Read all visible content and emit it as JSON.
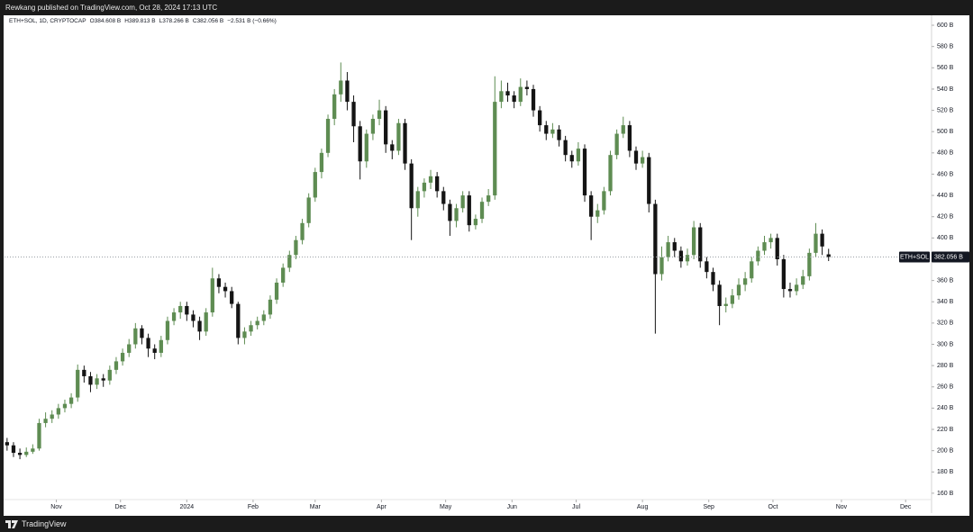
{
  "header": {
    "text": "Rewkang published on TradingView.com, Oct 28, 2024 17:13 UTC"
  },
  "footer": {
    "brand": "TradingView"
  },
  "chart_data": {
    "type": "candlestick",
    "legend": {
      "symbol": "ETH+SOL, 1D, CRYPTOCAP",
      "open": "O384.608 B",
      "high": "H389.813 B",
      "low": "L378.266 B",
      "close": "C382.056 B",
      "change": "−2.531 B (−0.66%)"
    },
    "up_color": "#5e8c52",
    "down_color": "#141414",
    "open": [
      208,
      205,
      198,
      196,
      199,
      202,
      226,
      230,
      234,
      240,
      244,
      250,
      276,
      270,
      262,
      268,
      266,
      276,
      284,
      292,
      300,
      315,
      306,
      296,
      292,
      304,
      322,
      330,
      336,
      328,
      322,
      312,
      330,
      362,
      354,
      350,
      338,
      306,
      312,
      318,
      322,
      328,
      342,
      358,
      372,
      384,
      398,
      414,
      438,
      462,
      480,
      512,
      535,
      548,
      528,
      505,
      472,
      498,
      512,
      520,
      488,
      482,
      508,
      470,
      428,
      444,
      452,
      458,
      444,
      432,
      416,
      428,
      440,
      412,
      418,
      434,
      440,
      528,
      538,
      534,
      528,
      542,
      540,
      520,
      506,
      498,
      502,
      492,
      478,
      472,
      484,
      440,
      420,
      426,
      444,
      478,
      498,
      506,
      482,
      470,
      476,
      432,
      366,
      382,
      396,
      388,
      378,
      384,
      410,
      378,
      368,
      356,
      336,
      338,
      346,
      356,
      362,
      378,
      388,
      396,
      400,
      380,
      352,
      350,
      356,
      364,
      386,
      404,
      384.608
    ],
    "high": [
      212,
      208,
      202,
      203,
      206,
      230,
      236,
      238,
      244,
      248,
      254,
      281,
      280,
      274,
      272,
      272,
      280,
      288,
      296,
      305,
      320,
      318,
      310,
      300,
      308,
      326,
      334,
      340,
      340,
      332,
      326,
      334,
      372,
      366,
      358,
      354,
      340,
      316,
      322,
      326,
      332,
      346,
      362,
      376,
      388,
      402,
      418,
      442,
      466,
      484,
      516,
      540,
      565,
      556,
      534,
      510,
      502,
      516,
      530,
      524,
      492,
      512,
      512,
      474,
      448,
      456,
      464,
      462,
      448,
      436,
      432,
      444,
      444,
      422,
      438,
      446,
      552,
      548,
      546,
      538,
      550,
      548,
      544,
      524,
      510,
      508,
      506,
      496,
      482,
      490,
      488,
      444,
      432,
      448,
      482,
      502,
      514,
      510,
      486,
      482,
      480,
      436,
      392,
      402,
      400,
      392,
      390,
      416,
      414,
      382,
      372,
      360,
      344,
      352,
      362,
      368,
      382,
      392,
      402,
      404,
      404,
      384,
      358,
      362,
      370,
      390,
      414,
      408,
      389.813
    ],
    "low": [
      200,
      194,
      192,
      194,
      197,
      200,
      222,
      226,
      230,
      236,
      240,
      246,
      264,
      255,
      258,
      260,
      262,
      272,
      280,
      288,
      296,
      300,
      288,
      286,
      288,
      300,
      318,
      324,
      322,
      316,
      304,
      308,
      326,
      348,
      344,
      334,
      300,
      300,
      308,
      314,
      318,
      324,
      338,
      354,
      368,
      380,
      394,
      410,
      434,
      456,
      476,
      506,
      528,
      520,
      490,
      455,
      466,
      492,
      506,
      480,
      474,
      478,
      464,
      398,
      420,
      438,
      446,
      438,
      426,
      402,
      410,
      424,
      406,
      408,
      414,
      430,
      436,
      522,
      528,
      522,
      524,
      534,
      514,
      500,
      492,
      494,
      486,
      472,
      466,
      468,
      434,
      398,
      414,
      422,
      440,
      474,
      494,
      476,
      464,
      466,
      424,
      310,
      360,
      378,
      382,
      372,
      374,
      380,
      372,
      362,
      350,
      318,
      330,
      334,
      342,
      350,
      358,
      374,
      384,
      390,
      374,
      344,
      344,
      346,
      352,
      360,
      382,
      384,
      378.266
    ],
    "close": [
      205,
      198,
      196,
      199,
      202,
      226,
      230,
      234,
      240,
      244,
      250,
      276,
      270,
      262,
      268,
      266,
      276,
      284,
      292,
      300,
      315,
      306,
      296,
      292,
      304,
      322,
      330,
      336,
      328,
      322,
      312,
      330,
      362,
      354,
      350,
      338,
      306,
      312,
      318,
      322,
      328,
      342,
      358,
      372,
      384,
      398,
      414,
      438,
      462,
      480,
      512,
      535,
      548,
      528,
      505,
      472,
      498,
      512,
      520,
      488,
      482,
      508,
      470,
      428,
      444,
      452,
      458,
      444,
      432,
      416,
      428,
      440,
      412,
      418,
      434,
      440,
      528,
      538,
      534,
      528,
      542,
      540,
      520,
      506,
      498,
      502,
      492,
      478,
      472,
      484,
      440,
      420,
      426,
      444,
      478,
      498,
      506,
      482,
      470,
      476,
      432,
      366,
      382,
      396,
      388,
      378,
      384,
      410,
      378,
      368,
      356,
      336,
      338,
      346,
      356,
      362,
      378,
      388,
      396,
      400,
      380,
      352,
      350,
      356,
      364,
      386,
      404,
      392,
      382.056
    ],
    "xlim": [
      -0.4,
      143.9
    ],
    "xticks": [
      {
        "value": 7.67,
        "label": "Nov"
      },
      {
        "value": 17.67,
        "label": "Dec"
      },
      {
        "value": 28,
        "label": "2024"
      },
      {
        "value": 38.33,
        "label": "Feb"
      },
      {
        "value": 48,
        "label": "Mar"
      },
      {
        "value": 58.33,
        "label": "Apr"
      },
      {
        "value": 68.33,
        "label": "May"
      },
      {
        "value": 78.67,
        "label": "Jun"
      },
      {
        "value": 88.67,
        "label": "Jul"
      },
      {
        "value": 99,
        "label": "Aug"
      },
      {
        "value": 109.33,
        "label": "Sep"
      },
      {
        "value": 119.33,
        "label": "Oct"
      },
      {
        "value": 130,
        "label": "Nov"
      },
      {
        "value": 140,
        "label": "Dec"
      }
    ],
    "ylim": [
      143,
      608.5
    ],
    "yticks": [
      {
        "value": 160,
        "label": "160 B"
      },
      {
        "value": 180,
        "label": "180 B"
      },
      {
        "value": 200,
        "label": "200 B"
      },
      {
        "value": 220,
        "label": "220 B"
      },
      {
        "value": 240,
        "label": "240 B"
      },
      {
        "value": 260,
        "label": "260 B"
      },
      {
        "value": 280,
        "label": "280 B"
      },
      {
        "value": 300,
        "label": "300 B"
      },
      {
        "value": 320,
        "label": "320 B"
      },
      {
        "value": 340,
        "label": "340 B"
      },
      {
        "value": 360,
        "label": "360 B"
      },
      {
        "value": 380,
        "label": "380 B"
      },
      {
        "value": 400,
        "label": "400 B"
      },
      {
        "value": 420,
        "label": "420 B"
      },
      {
        "value": 440,
        "label": "440 B"
      },
      {
        "value": 460,
        "label": "460 B"
      },
      {
        "value": 480,
        "label": "480 B"
      },
      {
        "value": 500,
        "label": "500 B"
      },
      {
        "value": 520,
        "label": "520 B"
      },
      {
        "value": 540,
        "label": "540 B"
      },
      {
        "value": 560,
        "label": "560 B"
      },
      {
        "value": 580,
        "label": "580 B"
      },
      {
        "value": 600,
        "label": "600 B"
      }
    ],
    "price_line": {
      "name": "ETH+SOL",
      "value": 382.056,
      "label": "382.056 B",
      "color": "#9aa0a6"
    }
  }
}
